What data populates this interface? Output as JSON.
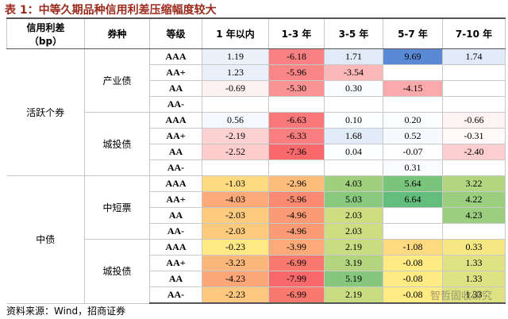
{
  "title": "表 1：中等久期品种信用利差压缩幅度较大",
  "header": {
    "columns": [
      "信用利差（bp）",
      "券种",
      "等级",
      "1 年以内",
      "1-3 年",
      "3-5 年",
      "5-7 年",
      "7-10 年"
    ]
  },
  "sections": [
    {
      "label": "活跃个券",
      "scale": "diverging",
      "groups": [
        {
          "label": "产业债",
          "rows": [
            {
              "rating": "AAA",
              "values": [
                "1.19",
                "-6.18",
                "1.71",
                "9.69",
                "1.74"
              ]
            },
            {
              "rating": "AA+",
              "values": [
                "1.23",
                "-5.96",
                "-3.54",
                null,
                null
              ]
            },
            {
              "rating": "AA",
              "values": [
                "-0.69",
                "-5.30",
                "0.30",
                "-4.15",
                null
              ]
            },
            {
              "rating": "AA-",
              "values": [
                null,
                null,
                null,
                null,
                null
              ]
            }
          ]
        },
        {
          "label": "城投债",
          "rows": [
            {
              "rating": "AAA",
              "values": [
                "0.56",
                "-6.63",
                "0.10",
                "0.20",
                "-0.66"
              ]
            },
            {
              "rating": "AA+",
              "values": [
                "-2.19",
                "-6.33",
                "1.68",
                "0.52",
                "-0.31"
              ]
            },
            {
              "rating": "AA",
              "values": [
                "-2.52",
                "-7.36",
                "0.04",
                "-0.07",
                "-2.40"
              ]
            },
            {
              "rating": "AA-",
              "values": [
                null,
                null,
                null,
                "0.31",
                null
              ]
            }
          ]
        }
      ]
    },
    {
      "label": "中债",
      "scale": "traffic",
      "groups": [
        {
          "label": "中短票",
          "rows": [
            {
              "rating": "AAA",
              "values": [
                "-1.03",
                "-2.96",
                "4.03",
                "5.64",
                "3.22"
              ]
            },
            {
              "rating": "AA+",
              "values": [
                "-4.03",
                "-5.96",
                "5.03",
                "6.64",
                "4.22"
              ]
            },
            {
              "rating": "AA",
              "values": [
                "-2.03",
                "-4.96",
                "2.03",
                null,
                "4.23"
              ]
            },
            {
              "rating": "AA-",
              "values": [
                "-2.03",
                "-4.96",
                "2.03",
                null,
                null
              ]
            }
          ]
        },
        {
          "label": "城投债",
          "rows": [
            {
              "rating": "AAA",
              "values": [
                "-0.23",
                "-3.99",
                "2.19",
                "-1.08",
                "0.33"
              ]
            },
            {
              "rating": "AA+",
              "values": [
                "-3.23",
                "-6.99",
                "3.19",
                "-0.08",
                "1.33"
              ]
            },
            {
              "rating": "AA",
              "values": [
                "-4.23",
                "-7.99",
                "5.19",
                "-0.08",
                "1.33"
              ]
            },
            {
              "rating": "AA-",
              "values": [
                "-2.23",
                "-6.99",
                "2.19",
                "-0.08",
                "1.33"
              ]
            }
          ]
        }
      ]
    }
  ],
  "source": "资料来源：Wind，招商证券",
  "watermark": "智哲固收研究"
}
